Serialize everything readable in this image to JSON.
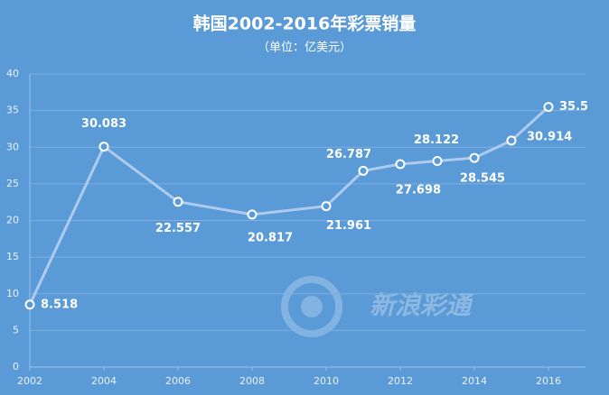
{
  "chart_data": {
    "type": "line",
    "title": "韩国2002-2016年彩票销量",
    "subtitle": "（单位：亿美元）",
    "watermark": "新浪彩通",
    "x": [
      2002,
      2004,
      2006,
      2008,
      2010,
      2011,
      2012,
      2013,
      2014,
      2015,
      2016
    ],
    "series": [
      {
        "name": "彩票销量",
        "color": "#aecbee",
        "values": [
          8.518,
          30.083,
          22.557,
          20.817,
          21.961,
          26.787,
          27.698,
          28.122,
          28.545,
          30.914,
          35.5
        ]
      }
    ],
    "xlim": [
      2002,
      2017
    ],
    "xticks": [
      2002,
      2004,
      2006,
      2008,
      2010,
      2012,
      2014,
      2016
    ],
    "ylim": [
      0,
      40
    ],
    "yticks": [
      0,
      5,
      10,
      15,
      20,
      25,
      30,
      35,
      40
    ],
    "grid": true
  }
}
